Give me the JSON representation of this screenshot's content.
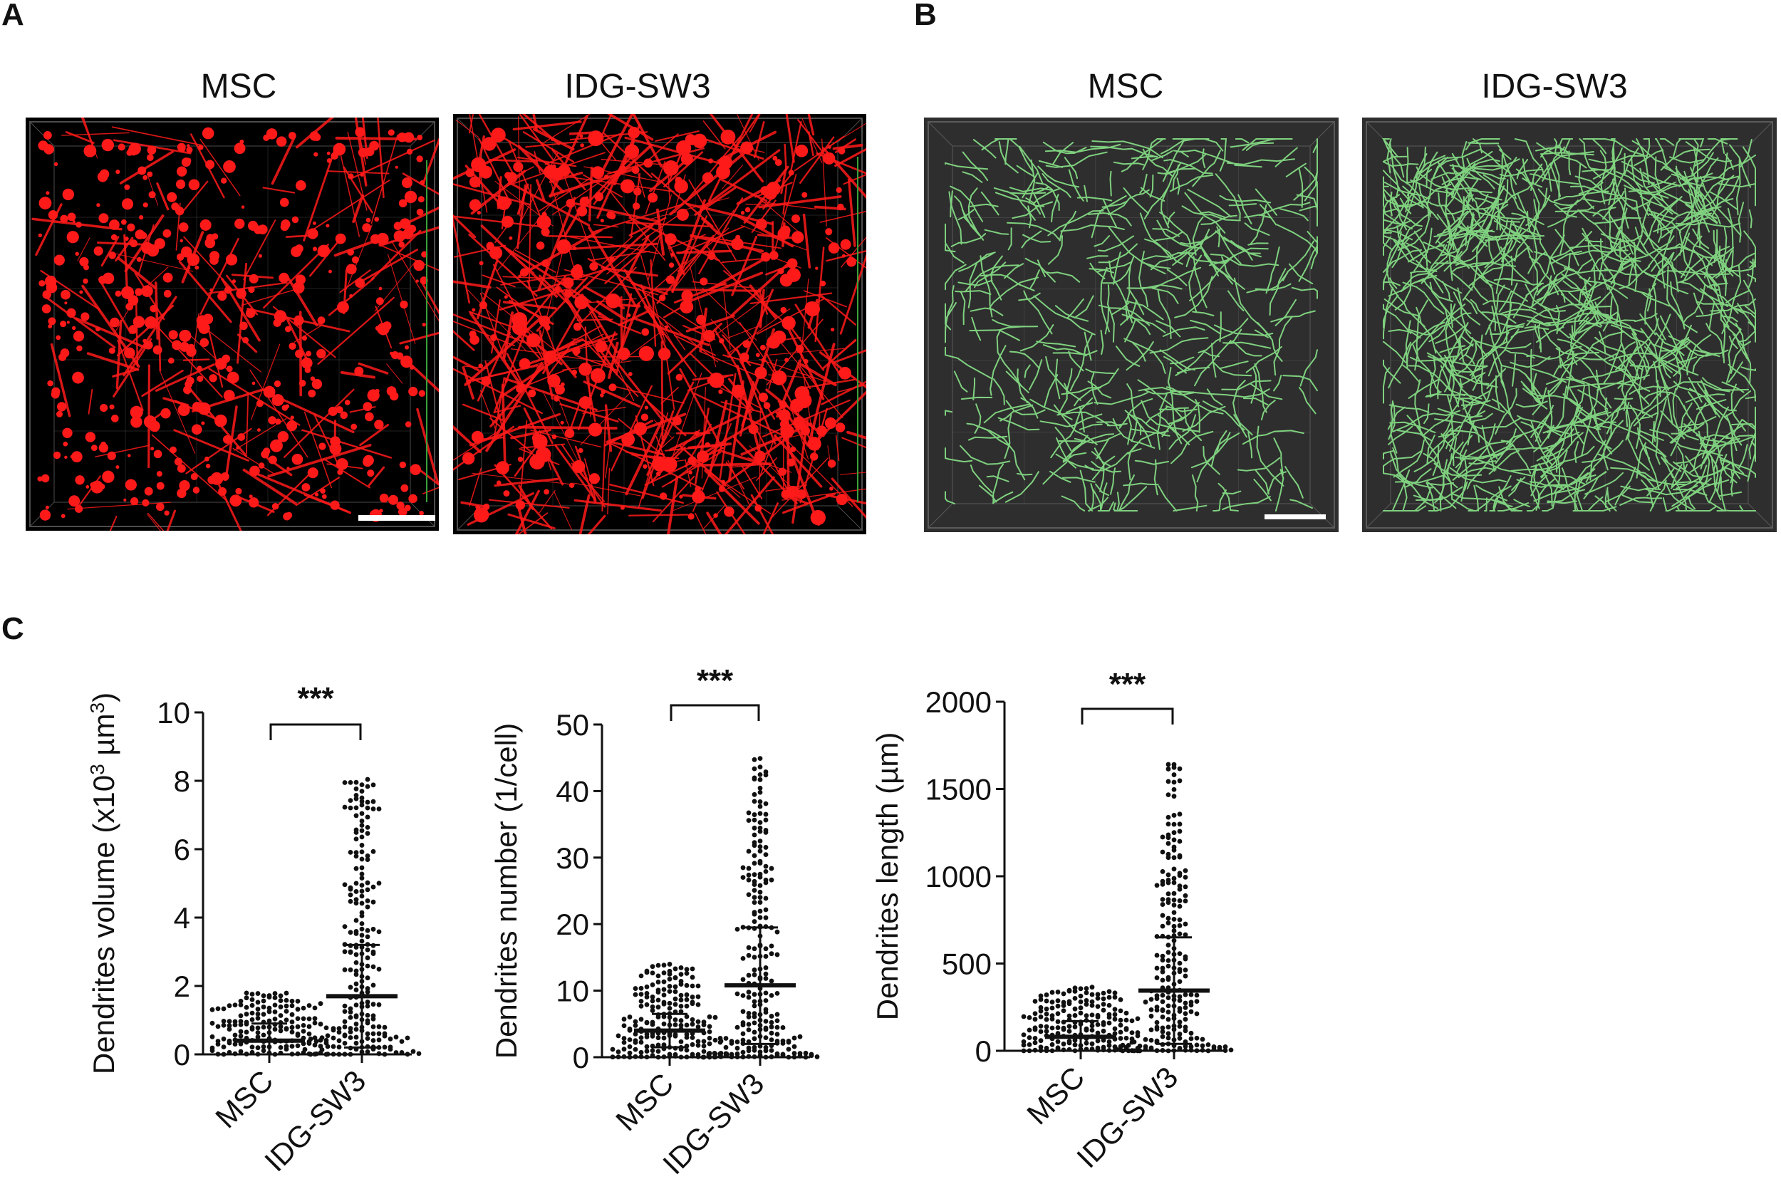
{
  "figure": {
    "panel_labels": {
      "a": "A",
      "b": "B",
      "c": "C"
    },
    "panel_a": {
      "left_title": "MSC",
      "right_title": "IDG-SW3",
      "stain_color": "#ff1a1a"
    },
    "panel_b": {
      "left_title": "MSC",
      "right_title": "IDG-SW3",
      "trace_color": "#7fd17f",
      "background": "#2e2e2e"
    }
  },
  "chart_data": [
    {
      "type": "scatter",
      "ylabel_prefix": "Dendrites volume (x10",
      "ylabel_sup1": "3",
      "ylabel_mid": " µm",
      "ylabel_sup2": "3",
      "ylabel_suffix": ")",
      "categories": [
        "MSC",
        "IDG-SW3"
      ],
      "ylim": [
        0,
        10
      ],
      "yticks": [
        0,
        2,
        4,
        6,
        8,
        10
      ],
      "significance": "***",
      "series": [
        {
          "category": "MSC",
          "mean": 0.4,
          "sd_upper": 0.9,
          "sd_lower": 0.0,
          "max": 1.8,
          "n": 260
        },
        {
          "category": "IDG-SW3",
          "mean": 1.7,
          "sd_upper": 3.2,
          "sd_lower": 0.2,
          "max": 8.1,
          "n": 230
        }
      ]
    },
    {
      "type": "scatter",
      "ylabel": "Dendrites number  (1/cell)",
      "categories": [
        "MSC",
        "IDG-SW3"
      ],
      "ylim": [
        0,
        50
      ],
      "yticks": [
        0,
        10,
        20,
        30,
        40,
        50
      ],
      "significance": "***",
      "series": [
        {
          "category": "MSC",
          "mean": 4,
          "sd_upper": 6.5,
          "sd_lower": 1.5,
          "max": 14,
          "n": 240
        },
        {
          "category": "IDG-SW3",
          "mean": 10.8,
          "sd_upper": 19.5,
          "sd_lower": 2,
          "max": 45,
          "n": 230
        }
      ]
    },
    {
      "type": "scatter",
      "ylabel": "Dendrites length (µm)",
      "categories": [
        "MSC",
        "IDG-SW3"
      ],
      "ylim": [
        0,
        2000
      ],
      "yticks": [
        0,
        500,
        1000,
        1500,
        2000
      ],
      "significance": "***",
      "series": [
        {
          "category": "MSC",
          "mean": 80,
          "sd_upper": 170,
          "sd_lower": 0,
          "max": 370,
          "n": 260
        },
        {
          "category": "IDG-SW3",
          "mean": 345,
          "sd_upper": 650,
          "sd_lower": 40,
          "max": 1650,
          "n": 230
        }
      ]
    }
  ]
}
